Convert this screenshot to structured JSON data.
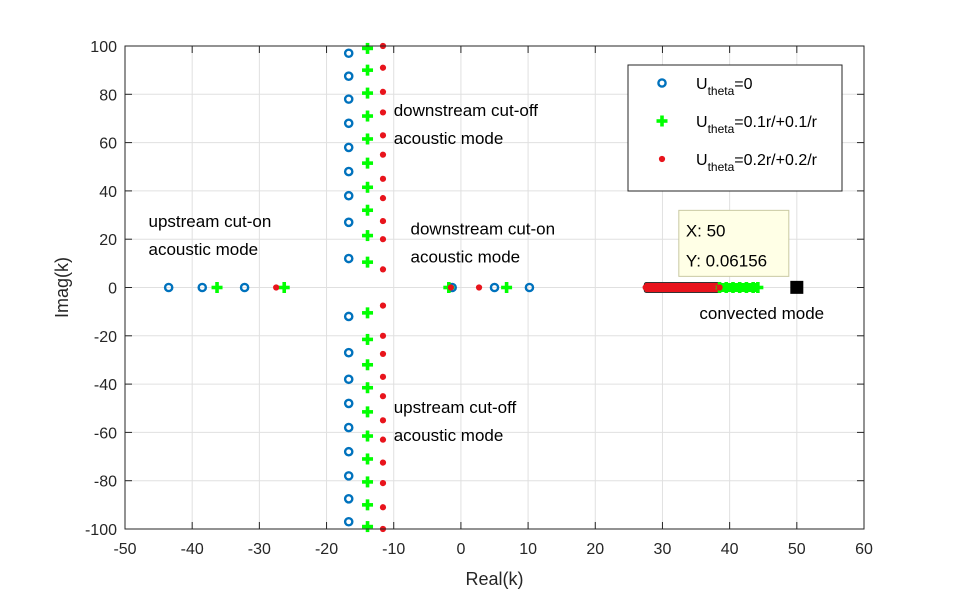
{
  "chart_data": {
    "type": "scatter",
    "xlabel": "Real(k)",
    "ylabel": "Imag(k)",
    "xlim": [
      -50,
      60
    ],
    "ylim": [
      -100,
      100
    ],
    "xticks": [
      -50,
      -40,
      -30,
      -20,
      -10,
      0,
      10,
      20,
      30,
      40,
      50,
      60
    ],
    "yticks": [
      -100,
      -80,
      -60,
      -40,
      -20,
      0,
      20,
      40,
      60,
      80,
      100
    ],
    "grid": true,
    "legend_position": "top-right",
    "series": [
      {
        "name": "U",
        "name_sub": "theta",
        "name_rest": "=0",
        "marker": "circle-dot",
        "color": "#0072BD",
        "points": [
          [
            -43.5,
            0
          ],
          [
            -38.5,
            0
          ],
          [
            -32.2,
            0
          ],
          [
            -1.3,
            0
          ],
          [
            5,
            0
          ],
          [
            10.2,
            0
          ],
          [
            -16.7,
            12
          ],
          [
            -16.7,
            27
          ],
          [
            -16.7,
            38
          ],
          [
            -16.7,
            48
          ],
          [
            -16.7,
            58
          ],
          [
            -16.7,
            68
          ],
          [
            -16.7,
            78
          ],
          [
            -16.7,
            87.5
          ],
          [
            -16.7,
            97
          ],
          [
            -16.7,
            -12
          ],
          [
            -16.7,
            -27
          ],
          [
            -16.7,
            -38
          ],
          [
            -16.7,
            -48
          ],
          [
            -16.7,
            -58
          ],
          [
            -16.7,
            -68
          ],
          [
            -16.7,
            -78
          ],
          [
            -16.7,
            -87.5
          ],
          [
            -16.7,
            -97
          ]
        ]
      },
      {
        "name": "U",
        "name_sub": "theta",
        "name_rest": "=0.1r/+0.1/r",
        "marker": "plus",
        "color": "#00FF00",
        "points": [
          [
            -36.3,
            0
          ],
          [
            -26.3,
            0
          ],
          [
            -1.8,
            0
          ],
          [
            6.8,
            0
          ],
          [
            38.5,
            0
          ],
          [
            39.5,
            0
          ],
          [
            40.5,
            0
          ],
          [
            41.5,
            0
          ],
          [
            42.5,
            0
          ],
          [
            43.5,
            0
          ],
          [
            44.2,
            0
          ],
          [
            -13.9,
            10.5
          ],
          [
            -13.9,
            21.5
          ],
          [
            -13.9,
            32
          ],
          [
            -13.9,
            41.5
          ],
          [
            -13.9,
            51.5
          ],
          [
            -13.9,
            61.5
          ],
          [
            -13.9,
            71
          ],
          [
            -13.9,
            80.5
          ],
          [
            -13.9,
            90
          ],
          [
            -13.9,
            99
          ],
          [
            -13.9,
            -10.5
          ],
          [
            -13.9,
            -21.5
          ],
          [
            -13.9,
            -32
          ],
          [
            -13.9,
            -41.5
          ],
          [
            -13.9,
            -51.5
          ],
          [
            -13.9,
            -61.5
          ],
          [
            -13.9,
            -71
          ],
          [
            -13.9,
            -80.5
          ],
          [
            -13.9,
            -90
          ],
          [
            -13.9,
            -99
          ]
        ]
      },
      {
        "name": "U",
        "name_sub": "theta",
        "name_rest": "=0.2r/+0.2/r",
        "marker": "dot",
        "color": "#E8141C",
        "points": [
          [
            -27.5,
            0
          ],
          [
            -1.5,
            0
          ],
          [
            2.7,
            0
          ],
          [
            27.5,
            0
          ],
          [
            28.5,
            0
          ],
          [
            29.5,
            0
          ],
          [
            30.5,
            0
          ],
          [
            31.5,
            0
          ],
          [
            32.5,
            0
          ],
          [
            33.5,
            0
          ],
          [
            34.5,
            0
          ],
          [
            35.5,
            0
          ],
          [
            36.5,
            0
          ],
          [
            37.5,
            0
          ],
          [
            38.5,
            0
          ],
          [
            -11.6,
            7.5
          ],
          [
            -11.6,
            20
          ],
          [
            -11.6,
            27.5
          ],
          [
            -11.6,
            37
          ],
          [
            -11.6,
            45
          ],
          [
            -11.6,
            55
          ],
          [
            -11.6,
            63
          ],
          [
            -11.6,
            72.5
          ],
          [
            -11.6,
            81
          ],
          [
            -11.6,
            91
          ],
          [
            -11.6,
            100
          ],
          [
            -11.6,
            -7.5
          ],
          [
            -11.6,
            -20
          ],
          [
            -11.6,
            -27.5
          ],
          [
            -11.6,
            -37
          ],
          [
            -11.6,
            -45
          ],
          [
            -11.6,
            -55
          ],
          [
            -11.6,
            -63
          ],
          [
            -11.6,
            -72.5
          ],
          [
            -11.6,
            -81
          ],
          [
            -11.6,
            -91
          ],
          [
            -11.6,
            -100
          ]
        ]
      }
    ],
    "highlight_point": {
      "x": 50,
      "y": 0.06156,
      "marker": "filled-square",
      "color": "#000000"
    },
    "datatip": {
      "x_text": "X: 50",
      "y_text": "Y: 0.06156",
      "fill": "#FFFFE6",
      "border": "#C9C9A3"
    },
    "annotations": [
      {
        "lines": [
          "downstream cut-off",
          "acoustic mode"
        ],
        "x": -10,
        "y": 71
      },
      {
        "lines": [
          "upstream cut-on",
          "acoustic mode"
        ],
        "x": -46.5,
        "y": 25
      },
      {
        "lines": [
          "downstream cut-on",
          "acoustic mode"
        ],
        "x": -7.5,
        "y": 22
      },
      {
        "lines": [
          "upstream cut-off",
          "acoustic mode"
        ],
        "x": -10,
        "y": -52
      },
      {
        "lines": [
          "convected mode"
        ],
        "x": 35.5,
        "y": -13
      }
    ]
  }
}
